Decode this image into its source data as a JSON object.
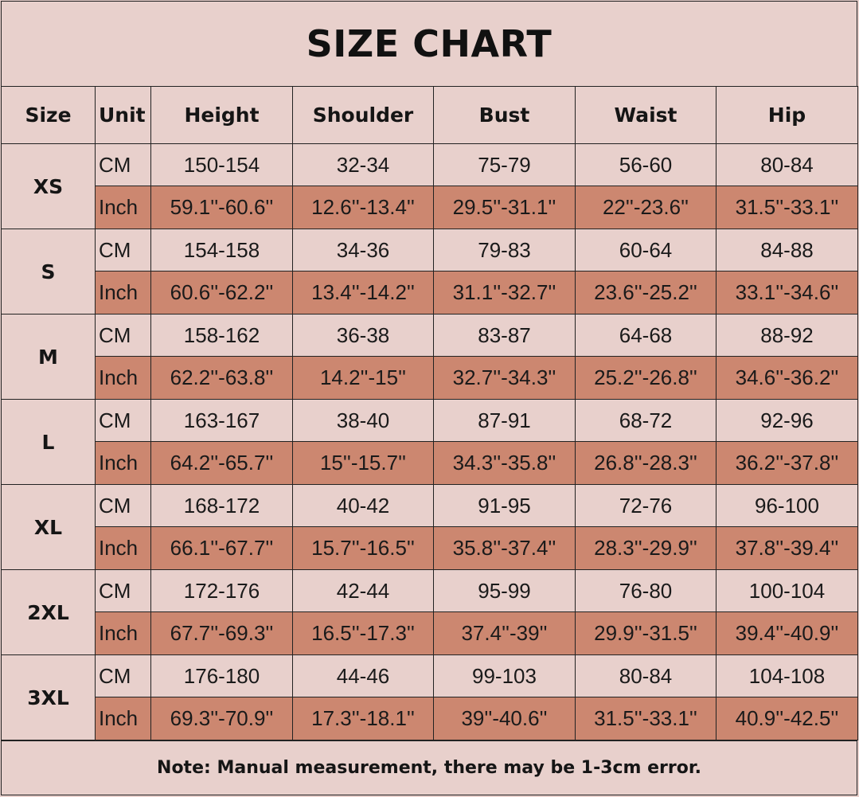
{
  "title": "SIZE CHART",
  "colors": {
    "background": "#e8d0cc",
    "inch_row": "#cc8770",
    "border": "#222222"
  },
  "headers": {
    "size": "Size",
    "unit": "Unit",
    "height": "Height",
    "shoulder": "Shoulder",
    "bust": "Bust",
    "waist": "Waist",
    "hip": "Hip"
  },
  "units": {
    "cm": "CM",
    "inch": "Inch"
  },
  "sizes": [
    {
      "size": "XS",
      "cm": {
        "height": "150-154",
        "shoulder": "32-34",
        "bust": "75-79",
        "waist": "56-60",
        "hip": "80-84"
      },
      "inch": {
        "height": "59.1''-60.6''",
        "shoulder": "12.6''-13.4''",
        "bust": "29.5''-31.1''",
        "waist": "22''-23.6''",
        "hip": "31.5''-33.1''"
      }
    },
    {
      "size": "S",
      "cm": {
        "height": "154-158",
        "shoulder": "34-36",
        "bust": "79-83",
        "waist": "60-64",
        "hip": "84-88"
      },
      "inch": {
        "height": "60.6''-62.2''",
        "shoulder": "13.4''-14.2''",
        "bust": "31.1''-32.7''",
        "waist": "23.6''-25.2''",
        "hip": "33.1''-34.6''"
      }
    },
    {
      "size": "M",
      "cm": {
        "height": "158-162",
        "shoulder": "36-38",
        "bust": "83-87",
        "waist": "64-68",
        "hip": "88-92"
      },
      "inch": {
        "height": "62.2''-63.8''",
        "shoulder": "14.2''-15''",
        "bust": "32.7''-34.3''",
        "waist": "25.2''-26.8''",
        "hip": "34.6''-36.2''"
      }
    },
    {
      "size": "L",
      "cm": {
        "height": "163-167",
        "shoulder": "38-40",
        "bust": "87-91",
        "waist": "68-72",
        "hip": "92-96"
      },
      "inch": {
        "height": "64.2''-65.7''",
        "shoulder": "15''-15.7''",
        "bust": "34.3''-35.8''",
        "waist": "26.8''-28.3''",
        "hip": "36.2''-37.8''"
      }
    },
    {
      "size": "XL",
      "cm": {
        "height": "168-172",
        "shoulder": "40-42",
        "bust": "91-95",
        "waist": "72-76",
        "hip": "96-100"
      },
      "inch": {
        "height": "66.1''-67.7''",
        "shoulder": "15.7''-16.5''",
        "bust": "35.8''-37.4''",
        "waist": "28.3''-29.9''",
        "hip": "37.8''-39.4''"
      }
    },
    {
      "size": "2XL",
      "cm": {
        "height": "172-176",
        "shoulder": "42-44",
        "bust": "95-99",
        "waist": "76-80",
        "hip": "100-104"
      },
      "inch": {
        "height": "67.7''-69.3''",
        "shoulder": "16.5''-17.3''",
        "bust": "37.4''-39''",
        "waist": "29.9''-31.5''",
        "hip": "39.4''-40.9''"
      }
    },
    {
      "size": "3XL",
      "cm": {
        "height": "176-180",
        "shoulder": "44-46",
        "bust": "99-103",
        "waist": "80-84",
        "hip": "104-108"
      },
      "inch": {
        "height": "69.3''-70.9''",
        "shoulder": "17.3''-18.1''",
        "bust": "39''-40.6''",
        "waist": "31.5''-33.1''",
        "hip": "40.9''-42.5''"
      }
    }
  ],
  "note": "Note: Manual measurement, there may be 1-3cm error."
}
